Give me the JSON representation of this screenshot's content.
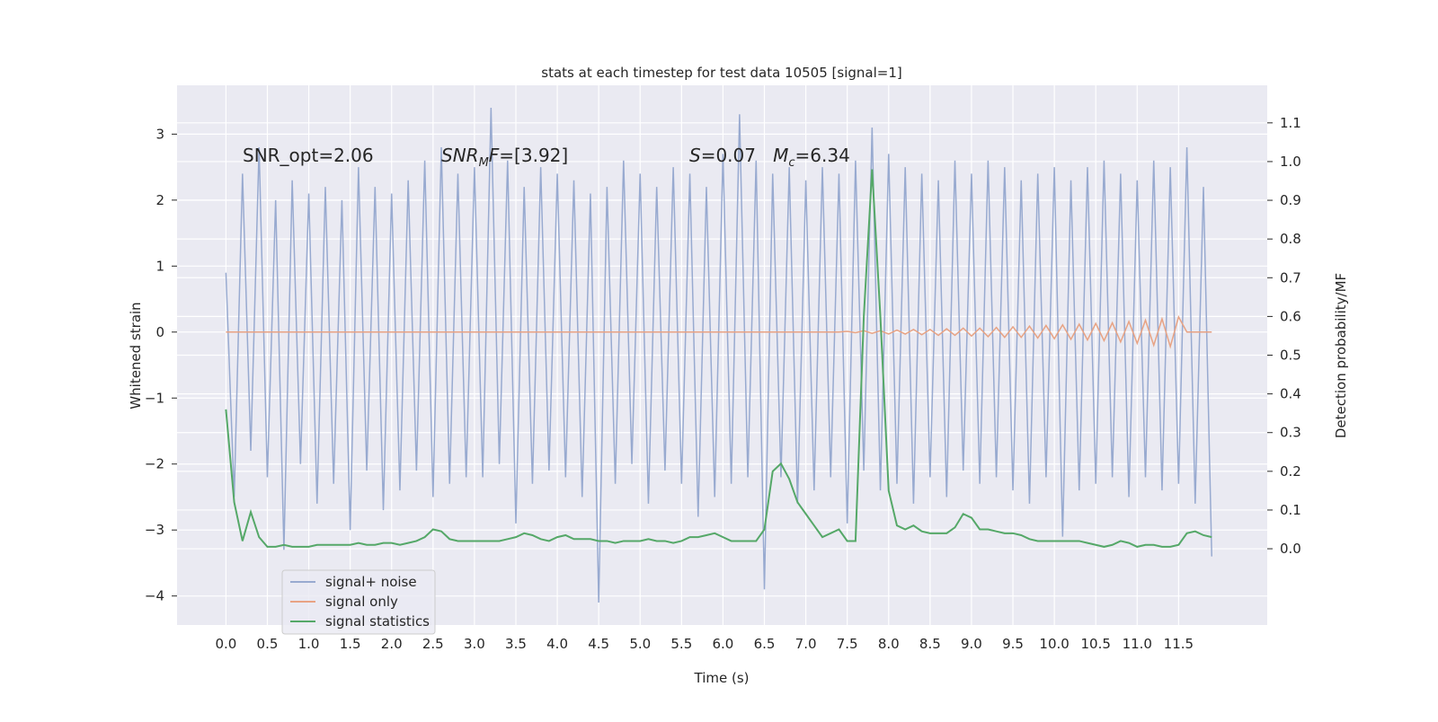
{
  "chart_data": {
    "type": "line",
    "title": "stats at each timestep for test data 10505 [signal=1]",
    "xlabel": "Time (s)",
    "ylabel": "Whitened strain",
    "y2label": "Detection probability/MF",
    "xlim": [
      -0.59,
      12.57
    ],
    "ylim": [
      -4.44,
      3.74
    ],
    "y2lim": [
      -0.197,
      1.197
    ],
    "grid": true,
    "legend": "lower left",
    "xticks": [
      {
        "value": 0,
        "label": "0.0"
      },
      {
        "value": 0.5,
        "label": "0.5"
      },
      {
        "value": 1,
        "label": "1.0"
      },
      {
        "value": 1.5,
        "label": "1.5"
      },
      {
        "value": 2,
        "label": "2.0"
      },
      {
        "value": 2.5,
        "label": "2.5"
      },
      {
        "value": 3,
        "label": "3.0"
      },
      {
        "value": 3.5,
        "label": "3.5"
      },
      {
        "value": 4,
        "label": "4.0"
      },
      {
        "value": 4.5,
        "label": "4.5"
      },
      {
        "value": 5,
        "label": "5.0"
      },
      {
        "value": 5.5,
        "label": "5.5"
      },
      {
        "value": 6,
        "label": "6.0"
      },
      {
        "value": 6.5,
        "label": "6.5"
      },
      {
        "value": 7,
        "label": "7.0"
      },
      {
        "value": 7.5,
        "label": "7.5"
      },
      {
        "value": 8,
        "label": "8.0"
      },
      {
        "value": 8.5,
        "label": "8.5"
      },
      {
        "value": 9,
        "label": "9.0"
      },
      {
        "value": 9.5,
        "label": "9.5"
      },
      {
        "value": 10,
        "label": "10.0"
      },
      {
        "value": 10.5,
        "label": "10.5"
      },
      {
        "value": 11,
        "label": "11.0"
      },
      {
        "value": 11.5,
        "label": "11.5"
      }
    ],
    "yticks": [
      {
        "value": -4,
        "label": "−4"
      },
      {
        "value": -3,
        "label": "−3"
      },
      {
        "value": -2,
        "label": "−2"
      },
      {
        "value": -1,
        "label": "−1"
      },
      0,
      1,
      2,
      3
    ],
    "y2ticks": [
      {
        "value": 0,
        "label": "0.0"
      },
      {
        "value": 0.1,
        "label": "0.1"
      },
      {
        "value": 0.2,
        "label": "0.2"
      },
      {
        "value": 0.3,
        "label": "0.3"
      },
      {
        "value": 0.4,
        "label": "0.4"
      },
      {
        "value": 0.5,
        "label": "0.5"
      },
      {
        "value": 0.6,
        "label": "0.6"
      },
      {
        "value": 0.7,
        "label": "0.7"
      },
      {
        "value": 0.8,
        "label": "0.8"
      },
      {
        "value": 0.9,
        "label": "0.9"
      },
      {
        "value": 1,
        "label": "1.0"
      },
      {
        "value": 1.1,
        "label": "1.1"
      }
    ],
    "annotations": [
      [
        {
          "t": "SNR_opt=2.06"
        }
      ],
      [
        {
          "t": "SNR",
          "italic": true
        },
        {
          "t": "M",
          "italic": true,
          "sub": true
        },
        {
          "t": "F",
          "italic": true
        },
        {
          "t": "=[3.92]"
        }
      ],
      [
        {
          "t": "S",
          "italic": true
        },
        {
          "t": "=0.07   "
        },
        {
          "t": "M",
          "italic": true
        },
        {
          "t": "c",
          "italic": true,
          "sub": true
        },
        {
          "t": "=6.34"
        }
      ]
    ],
    "x": [
      0,
      0.1,
      0.2,
      0.3,
      0.4,
      0.5,
      0.6,
      0.7,
      0.8,
      0.9,
      1,
      1.1,
      1.2,
      1.3,
      1.4,
      1.5,
      1.6,
      1.7,
      1.8,
      1.9,
      2,
      2.1,
      2.2,
      2.3,
      2.4,
      2.5,
      2.6,
      2.7,
      2.8,
      2.9,
      3,
      3.1,
      3.2,
      3.3,
      3.4,
      3.5,
      3.6,
      3.7,
      3.8,
      3.9,
      4,
      4.1,
      4.2,
      4.3,
      4.4,
      4.5,
      4.6,
      4.7,
      4.8,
      4.9,
      5,
      5.1,
      5.2,
      5.3,
      5.4,
      5.5,
      5.6,
      5.7,
      5.8,
      5.9,
      6,
      6.1,
      6.2,
      6.3,
      6.4,
      6.5,
      6.6,
      6.7,
      6.8,
      6.9,
      7,
      7.1,
      7.2,
      7.3,
      7.4,
      7.5,
      7.6,
      7.7,
      7.8,
      7.9,
      8,
      8.1,
      8.2,
      8.3,
      8.4,
      8.5,
      8.6,
      8.7,
      8.8,
      8.9,
      9,
      9.1,
      9.2,
      9.3,
      9.4,
      9.5,
      9.6,
      9.7,
      9.8,
      9.9,
      10,
      10.1,
      10.2,
      10.3,
      10.4,
      10.5,
      10.6,
      10.7,
      10.8,
      10.9,
      11,
      11.1,
      11.2,
      11.3,
      11.4,
      11.5,
      11.6,
      11.7,
      11.8,
      11.9
    ],
    "series": [
      {
        "name": "signal+ noise",
        "color": "#98aad0",
        "values": [
          0.9,
          -2.5,
          2.4,
          -1.8,
          2.8,
          -2.2,
          2.0,
          -3.3,
          2.3,
          -2.0,
          2.1,
          -2.6,
          2.2,
          -2.3,
          2.0,
          -3.0,
          2.5,
          -2.1,
          2.2,
          -2.7,
          2.1,
          -2.4,
          2.3,
          -2.1,
          2.6,
          -2.5,
          2.8,
          -2.3,
          2.4,
          -2.2,
          2.5,
          -2.2,
          3.4,
          -2.0,
          2.6,
          -2.9,
          2.2,
          -2.3,
          2.5,
          -2.1,
          2.4,
          -2.2,
          2.3,
          -2.5,
          2.1,
          -4.1,
          2.2,
          -2.3,
          2.6,
          -2.0,
          2.4,
          -2.6,
          2.2,
          -2.1,
          2.5,
          -2.3,
          2.4,
          -2.8,
          2.2,
          -2.5,
          2.7,
          -2.3,
          3.3,
          -2.2,
          2.6,
          -3.9,
          2.4,
          -2.2,
          2.5,
          -2.6,
          2.3,
          -2.4,
          2.5,
          -2.2,
          2.4,
          -2.9,
          2.6,
          -2.1,
          3.1,
          -2.4,
          2.7,
          -2.3,
          2.5,
          -2.6,
          2.4,
          -2.2,
          2.3,
          -2.5,
          2.6,
          -2.1,
          2.4,
          -2.3,
          2.6,
          -2.2,
          2.5,
          -2.4,
          2.3,
          -2.6,
          2.4,
          -2.2,
          2.5,
          -3.1,
          2.3,
          -2.4,
          2.5,
          -2.3,
          2.6,
          -2.2,
          2.4,
          -2.5,
          2.3,
          -2.2,
          2.6,
          -2.4,
          2.5,
          -2.3,
          2.8,
          -2.6,
          2.2,
          -3.4
        ]
      },
      {
        "name": "signal only",
        "color": "#e8a384",
        "values": [
          0,
          0,
          0,
          0,
          0,
          0,
          0,
          0,
          0,
          0,
          0,
          0,
          0,
          0,
          0,
          0,
          0,
          0,
          0,
          0,
          0,
          0,
          0,
          0,
          0,
          0,
          0,
          0,
          0,
          0,
          0,
          0,
          0,
          0,
          0,
          0,
          0,
          0,
          0,
          0,
          0,
          0,
          0,
          0,
          0,
          0,
          0,
          0,
          0,
          0,
          0,
          0,
          0,
          0,
          0,
          0,
          0,
          0,
          0,
          0,
          0,
          0,
          0,
          0,
          0,
          0,
          0,
          0,
          0,
          0,
          0,
          0,
          0,
          0,
          0,
          0.01,
          -0.01,
          0.02,
          -0.02,
          0.02,
          -0.03,
          0.03,
          -0.03,
          0.04,
          -0.04,
          0.04,
          -0.05,
          0.05,
          -0.05,
          0.06,
          -0.06,
          0.06,
          -0.07,
          0.07,
          -0.08,
          0.08,
          -0.08,
          0.09,
          -0.09,
          0.1,
          -0.1,
          0.11,
          -0.11,
          0.12,
          -0.12,
          0.13,
          -0.13,
          0.14,
          -0.15,
          0.16,
          -0.17,
          0.18,
          -0.2,
          0.2,
          -0.22,
          0.23,
          0,
          0,
          0,
          0
        ]
      },
      {
        "name": "signal statistics",
        "color": "#55a868",
        "axis": "y2",
        "values": [
          0.36,
          0.12,
          0.02,
          0.095,
          0.03,
          0.005,
          0.005,
          0.01,
          0.005,
          0.005,
          0.005,
          0.01,
          0.01,
          0.01,
          0.01,
          0.01,
          0.015,
          0.01,
          0.01,
          0.015,
          0.015,
          0.01,
          0.015,
          0.02,
          0.03,
          0.05,
          0.045,
          0.025,
          0.02,
          0.02,
          0.02,
          0.02,
          0.02,
          0.02,
          0.025,
          0.03,
          0.04,
          0.035,
          0.025,
          0.02,
          0.03,
          0.035,
          0.025,
          0.025,
          0.025,
          0.02,
          0.02,
          0.015,
          0.02,
          0.02,
          0.02,
          0.025,
          0.02,
          0.02,
          0.015,
          0.02,
          0.03,
          0.03,
          0.035,
          0.04,
          0.03,
          0.02,
          0.02,
          0.02,
          0.02,
          0.05,
          0.2,
          0.22,
          0.18,
          0.12,
          0.09,
          0.06,
          0.03,
          0.04,
          0.05,
          0.02,
          0.02,
          0.6,
          0.98,
          0.6,
          0.15,
          0.06,
          0.05,
          0.06,
          0.045,
          0.04,
          0.04,
          0.04,
          0.055,
          0.09,
          0.08,
          0.05,
          0.05,
          0.045,
          0.04,
          0.04,
          0.035,
          0.025,
          0.02,
          0.02,
          0.02,
          0.02,
          0.02,
          0.02,
          0.015,
          0.01,
          0.005,
          0.01,
          0.02,
          0.015,
          0.005,
          0.01,
          0.01,
          0.005,
          0.005,
          0.01,
          0.04,
          0.045,
          0.035,
          0.03
        ]
      }
    ]
  }
}
